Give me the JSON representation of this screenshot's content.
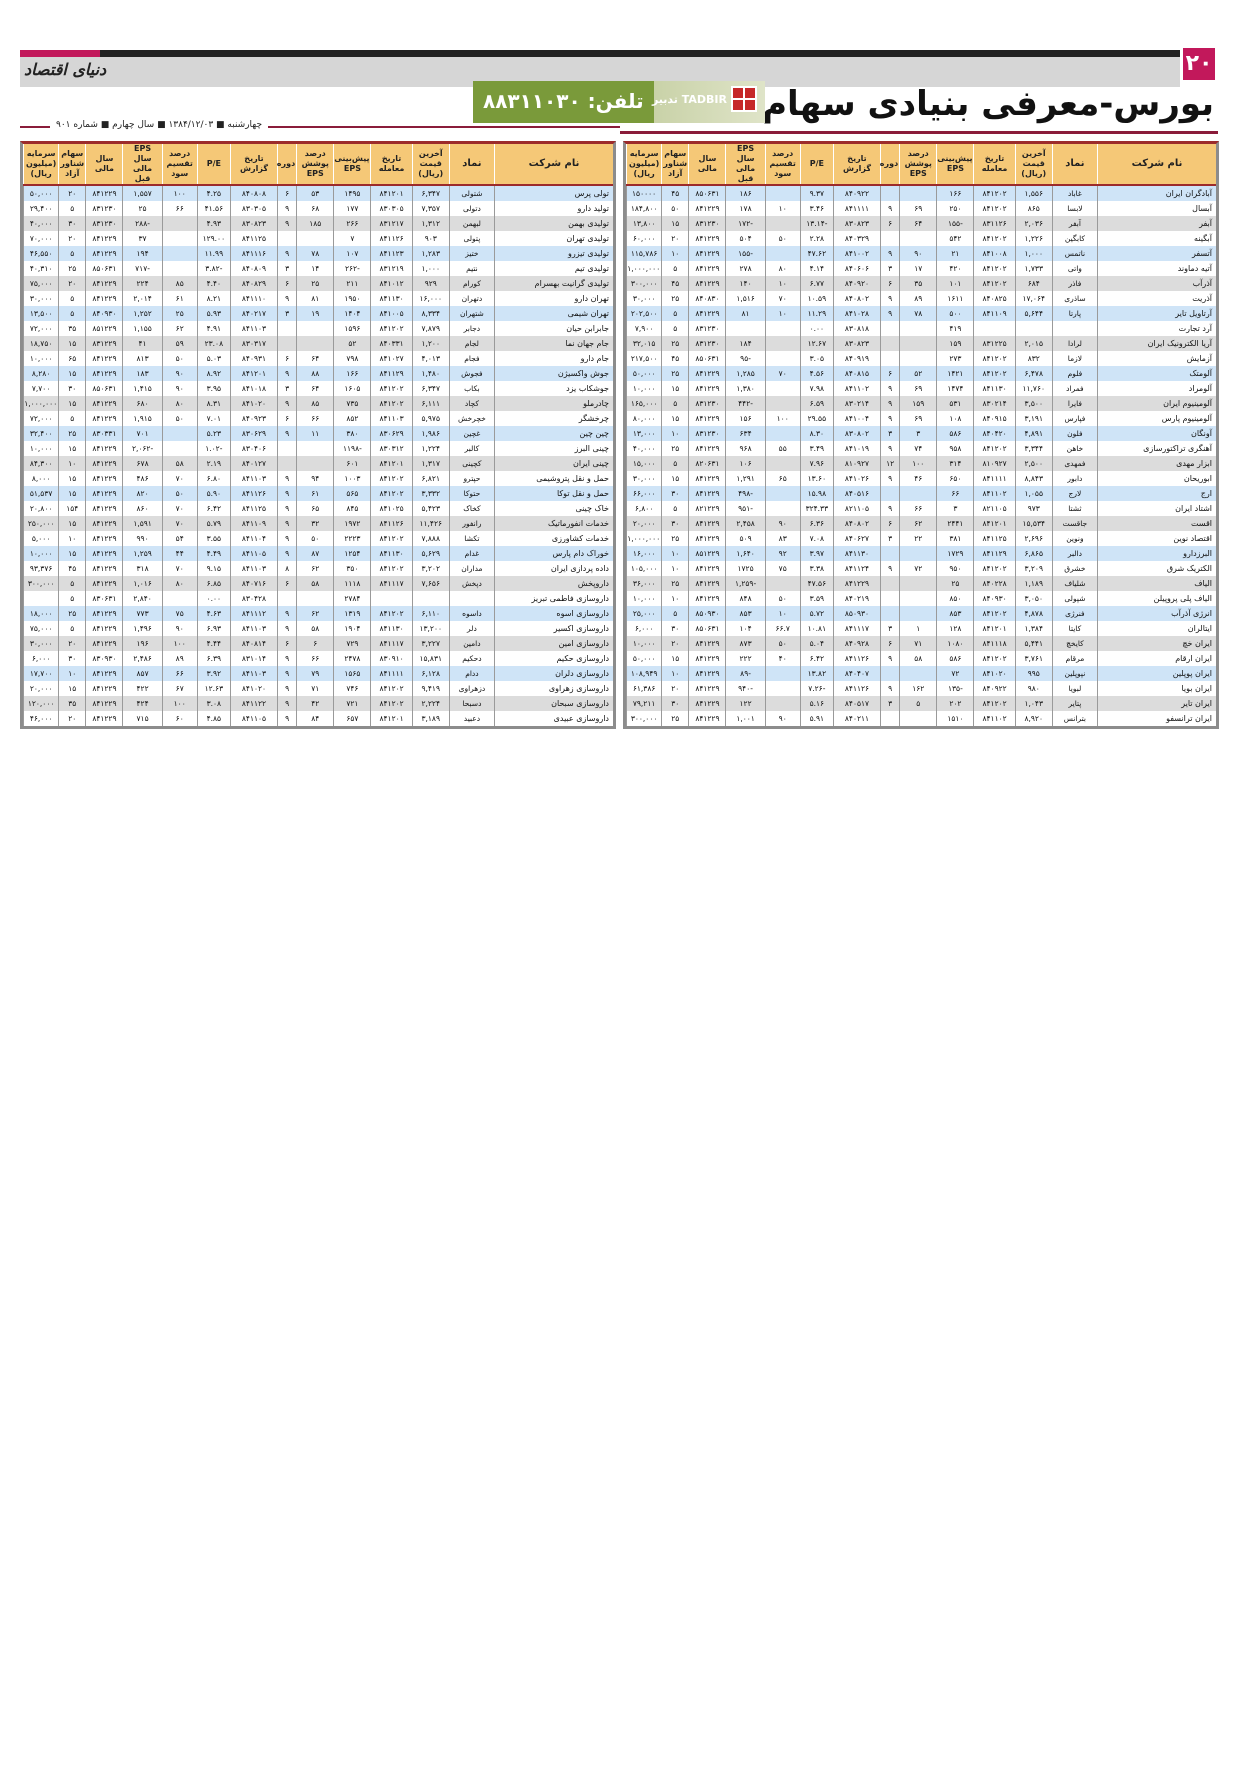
{
  "masthead": {
    "page_number": "۲۰",
    "paper_logo": "دنیای اقتصاد",
    "title": "بورس-معرفی بنیادی سهام",
    "phone": "تلفن: ۸۸۳۱۱۰۳۰",
    "sponsor": "تدبیر TADBIR",
    "dateline": "چهارشنبه ■ ۱۳۸۴/۱۲/۰۳ ■ سال چهارم ■ شماره ۹۰۱",
    "accent_color": "#c2185b",
    "banner_color": "#7a9a3a"
  },
  "columns": [
    "نام شرکت",
    "نماد",
    "آخرین قیمت (ریال)",
    "تاریخ معامله",
    "پیش‌بینی EPS",
    "درصد پوشش EPS",
    "دوره",
    "تاریخ گزارش",
    "P/E",
    "درصد تقسیم سود",
    "EPS سال مالی قبل",
    "سال مالی",
    "سهام شناور آزاد",
    "سرمایه (میلیون ریال)"
  ],
  "right_table": [
    [
      "آبادگران ایران",
      "غاباد",
      "۱,۵۵۶",
      "۸۴۱۲۰۲",
      "۱۶۶",
      "",
      "",
      "۸۴۰۹۲۲",
      "۹.۳۷",
      "",
      "۱۸۶",
      "۸۵۰۶۳۱",
      "۴۵",
      "۱۵۰۰۰۰"
    ],
    [
      "آبسال",
      "لابسا",
      "۸۶۵",
      "۸۴۱۲۰۲",
      "۲۵۰",
      "۶۹",
      "۹",
      "۸۴۱۱۱۱",
      "۳.۴۶",
      "۱۰",
      "۱۷۸",
      "۸۴۱۲۲۹",
      "۵۰",
      "۱۸۴,۸۰۰"
    ],
    [
      "آبفر",
      "آبفر",
      "۲,۰۳۶",
      "۸۳۱۱۲۶",
      "-۱۵۵",
      "۶۴",
      "۶",
      "۸۳۰۸۲۳",
      "-۱۳.۱۴",
      "",
      "-۱۷۲",
      "۸۳۱۲۳۰",
      "۱۵",
      "۱۳,۸۰۰"
    ],
    [
      "آبگینه",
      "کابگین",
      "۱,۲۲۶",
      "۸۴۱۲۰۲",
      "۵۴۲",
      "",
      "",
      "۸۴۰۳۲۹",
      "۲.۲۸",
      "۵۰",
      "۵۰۴",
      "۸۴۱۲۲۹",
      "۲۰",
      "۶۰,۰۰۰"
    ],
    [
      "آتسفر",
      "ناتمس",
      "۱,۰۰۰",
      "۸۴۱۰۰۸",
      "۲۱",
      "۹۰",
      "۹",
      "۸۴۱۰۰۲",
      "۴۷.۶۲",
      "",
      "-۱۵۵",
      "۸۴۱۲۲۹",
      "۱۰",
      "۱۱۵,۷۸۶"
    ],
    [
      "آتیه دماوند",
      "واتی",
      "۱,۷۳۳",
      "۸۴۱۲۰۲",
      "۴۲۰",
      "۱۷",
      "۳",
      "۸۴۰۶۰۶",
      "۴.۱۴",
      "۸۰",
      "۲۷۸",
      "۸۴۱۲۲۹",
      "۵",
      "۱,۰۰۰,۰۰۰"
    ],
    [
      "آذرآب",
      "فاذر",
      "۶۸۴",
      "۸۴۱۲۰۲",
      "۱۰۱",
      "۳۵",
      "۶",
      "۸۴۰۹۲۰",
      "۶.۷۷",
      "۱۰",
      "۱۴۰",
      "۸۴۱۲۲۹",
      "۴۵",
      "۳۰۰,۰۰۰"
    ],
    [
      "آذریت",
      "ساذری",
      "۱۷,۰۶۴",
      "۸۴۰۸۲۵",
      "۱۶۱۱",
      "۸۹",
      "۹",
      "۸۴۰۸۰۲",
      "۱۰.۵۹",
      "۷۰",
      "۱,۵۱۶",
      "۸۴۰۸۳۰",
      "۲۵",
      "۳۰,۰۰۰"
    ],
    [
      "آرتاویل تایر",
      "پارتا",
      "۵,۶۴۴",
      "۸۴۱۱۰۹",
      "۵۰۰",
      "۷۸",
      "۹",
      "۸۴۱۰۲۸",
      "۱۱.۲۹",
      "۱۰",
      "۸۱",
      "۸۴۱۲۲۹",
      "۵",
      "۲۰۲,۵۰۰"
    ],
    [
      "آرد تجارت",
      "",
      "",
      "",
      "۴۱۹",
      "",
      "",
      "۸۳۰۸۱۸",
      "۰.۰۰",
      "",
      "",
      "۸۳۱۲۳۰",
      "۵",
      "۷,۹۰۰"
    ],
    [
      "آریا الکترونیک ایران",
      "لرادا",
      "۲,۰۱۵",
      "۸۳۱۲۲۵",
      "۱۵۹",
      "",
      "",
      "۸۳۰۸۲۳",
      "۱۲.۶۷",
      "",
      "۱۸۴",
      "۸۳۱۲۳۰",
      "۲۵",
      "۳۲,۰۱۵"
    ],
    [
      "آزمایش",
      "لازما",
      "۸۳۲",
      "۸۴۱۲۰۲",
      "۲۷۳",
      "",
      "",
      "۸۴۰۹۱۹",
      "۳.۰۵",
      "",
      "-۹۵",
      "۸۵۰۶۳۱",
      "۴۵",
      "۲۱۷,۵۰۰"
    ],
    [
      "آلومتک",
      "فلوم",
      "۶,۴۷۸",
      "۸۴۱۲۰۲",
      "۱۴۲۱",
      "۵۲",
      "۶",
      "۸۴۰۸۱۵",
      "۴.۵۶",
      "۷۰",
      "۱,۲۸۵",
      "۸۴۱۲۲۹",
      "۲۵",
      "۵۰,۰۰۰"
    ],
    [
      "آلومراد",
      "فمراد",
      "۱۱,۷۶۰",
      "۸۴۱۱۳۰",
      "۱۴۷۴",
      "۶۹",
      "۹",
      "۸۴۱۱۰۲",
      "۷.۹۸",
      "",
      "۱,۳۸۰",
      "۸۴۱۲۲۹",
      "۱۵",
      "۱۰,۰۰۰"
    ],
    [
      "آلومینیوم ایران",
      "فایرا",
      "۳,۵۰۰",
      "۸۳۰۲۱۴",
      "۵۳۱",
      "۱۵۹",
      "۹",
      "۸۳۰۲۱۴",
      "۶.۵۹",
      "",
      "-۴۴۲",
      "۸۳۱۲۳۰",
      "۵",
      "۱۶۵,۰۰۰"
    ],
    [
      "آلومینیوم پارس",
      "فپارس",
      "۳,۱۹۱",
      "۸۴۰۹۱۵",
      "۱۰۸",
      "۶۹",
      "۹",
      "۸۴۱۰۰۴",
      "۲۹.۵۵",
      "۱۰۰",
      "۱۵۶",
      "۸۴۱۲۲۹",
      "۱۵",
      "۸۰,۰۰۰"
    ],
    [
      "آونگان",
      "فلون",
      "۴,۸۹۱",
      "۸۴۰۴۲۰",
      "۵۸۶",
      "۳",
      "۳",
      "۸۳۰۸۰۲",
      "۸.۳۰",
      "",
      "۶۳۴",
      "۸۳۱۲۳۰",
      "۱۰",
      "۱۳,۰۰۰"
    ],
    [
      "آهنگری تراکتورسازی",
      "خاهن",
      "۳,۳۴۴",
      "۸۴۱۲۰۲",
      "۹۵۸",
      "۷۴",
      "۹",
      "۸۴۱۰۱۹",
      "۳.۴۹",
      "۵۵",
      "۹۶۸",
      "۸۴۱۲۲۹",
      "۲۵",
      "۴۰,۰۰۰"
    ],
    [
      "ابزار مهدی",
      "فمهدی",
      "۲,۵۰۰",
      "۸۱۰۹۲۷",
      "۳۱۴",
      "۱۰۰",
      "۱۲",
      "۸۱۰۹۲۷",
      "۷.۹۶",
      "",
      "۱۰۶",
      "۸۲۰۶۳۱",
      "۵",
      "۱۵,۰۰۰"
    ],
    [
      "ابوریحان",
      "دابور",
      "۸,۸۴۳",
      "۸۴۱۱۱۱",
      "۶۵۰",
      "۴۶",
      "۹",
      "۸۴۱۰۲۶",
      "۱۳.۶۰",
      "۶۵",
      "۱,۲۹۱",
      "۸۴۱۲۲۹",
      "۱۵",
      "۳۰,۰۰۰"
    ],
    [
      "ارج",
      "لارج",
      "۱,۰۵۵",
      "۸۴۱۱۰۲",
      "۶۶",
      "",
      "",
      "۸۴۰۵۱۶",
      "۱۵.۹۸",
      "",
      "-۴۹۸",
      "۸۴۱۲۲۹",
      "۳۰",
      "۶۶,۰۰۰"
    ],
    [
      "اشتاد ایران",
      "ثشتا",
      "۹۷۳",
      "۸۲۱۱۰۵",
      "۳",
      "۶۶",
      "۹",
      "۸۲۱۱۰۵",
      "۳۲۴.۳۳",
      "",
      "-۹۵۱",
      "۸۲۱۲۲۹",
      "۵",
      "۶,۸۰۰"
    ],
    [
      "اقست",
      "جاقست",
      "۱۵,۵۳۴",
      "۸۴۱۲۰۱",
      "۲۴۴۱",
      "۶۲",
      "۶",
      "۸۴۰۸۰۲",
      "۶.۳۶",
      "۹۰",
      "۲,۴۵۸",
      "۸۴۱۲۲۹",
      "۳۰",
      "۲۰,۰۰۰"
    ],
    [
      "اقتصاد نوین",
      "ونوین",
      "۲,۶۹۶",
      "۸۴۱۱۲۵",
      "۳۸۱",
      "۲۲",
      "۳",
      "۸۴۰۶۲۷",
      "۷.۰۸",
      "۸۳",
      "۵۰۹",
      "۸۴۱۲۲۹",
      "۲۵",
      "۱,۰۰۰,۰۰۰"
    ],
    [
      "البرزدارو",
      "دالبر",
      "۶,۸۶۵",
      "۸۴۱۱۲۹",
      "۱۷۲۹",
      "",
      "",
      "۸۴۱۱۳۰",
      "۳.۹۷",
      "۹۲",
      "۱,۶۴۰",
      "۸۵۱۲۲۹",
      "۱۰",
      "۱۶,۰۰۰"
    ],
    [
      "الکتریک شرق",
      "خشرق",
      "۳,۲۰۹",
      "۸۴۱۲۰۲",
      "۹۵۰",
      "۷۲",
      "۹",
      "۸۴۱۱۲۴",
      "۳.۳۸",
      "۷۵",
      "۱۷۲۵",
      "۸۴۱۲۲۹",
      "۱۰",
      "۱۰۵,۰۰۰"
    ],
    [
      "الیاف",
      "شلیاف",
      "۱,۱۸۹",
      "۸۴۰۲۲۸",
      "۲۵",
      "",
      "",
      "۸۴۱۲۲۹",
      "۴۷.۵۶",
      "",
      "-۱,۲۵۹",
      "۸۴۱۲۲۹",
      "۲۵",
      "۳۶,۰۰۰"
    ],
    [
      "الیاف پلی پروپیلن",
      "شپولی",
      "۳,۰۵۰",
      "۸۴۰۹۳۰",
      "۸۵۰",
      "",
      "",
      "۸۴۰۲۱۹",
      "۳.۵۹",
      "۵۰",
      "۸۴۸",
      "۸۴۱۲۲۹",
      "۱۰",
      "۱۰,۰۰۰"
    ],
    [
      "انرژی آذرآب",
      "فنرژی",
      "۴,۸۷۸",
      "۸۴۱۲۰۲",
      "۸۵۳",
      "",
      "",
      "۸۵۰۹۳۰",
      "۵.۷۲",
      "۱۰",
      "۸۵۳",
      "۸۵۰۹۳۰",
      "۵",
      "۲۵,۰۰۰"
    ],
    [
      "ایتالران",
      "کایتا",
      "۱,۳۸۴",
      "۸۴۱۲۰۱",
      "۱۲۸",
      "۱",
      "۳",
      "۸۴۱۱۱۷",
      "۱۰.۸۱",
      "۶۶.۷",
      "۱۰۴",
      "۸۵۰۶۳۱",
      "۳۰",
      "۶,۰۰۰"
    ],
    [
      "ایران خچ",
      "کایخچ",
      "۵,۴۴۱",
      "۸۴۱۱۱۸",
      "۱۰۸۰",
      "۷۱",
      "۶",
      "۸۴۰۹۲۸",
      "۵.۰۴",
      "۵۰",
      "۸۷۳",
      "۸۴۱۲۲۹",
      "۲۰",
      "۱۰,۰۰۰"
    ],
    [
      "ایران ارقام",
      "مرقام",
      "۳,۷۶۱",
      "۸۴۱۲۰۲",
      "۵۸۶",
      "۵۸",
      "۹",
      "۸۴۱۱۲۶",
      "۶.۴۲",
      "۴۰",
      "۲۲۲",
      "۸۴۱۲۲۹",
      "۱۵",
      "۵۰,۰۰۰"
    ],
    [
      "ایران پوپلین",
      "نپوپلین",
      "۹۹۵",
      "۸۴۱۰۲۰",
      "۷۲",
      "",
      "",
      "۸۴۰۴۰۷",
      "۱۳.۸۲",
      "",
      "-۸۹",
      "۸۴۱۲۲۹",
      "۱۰",
      "۱۰۸,۹۴۹"
    ],
    [
      "ایران بویا",
      "لبویا",
      "۹۸۰",
      "۸۴۰۹۲۲",
      "-۱۳۵",
      "۱۶۲",
      "۹",
      "۸۴۱۱۲۶",
      "-۷.۲۶",
      "",
      "-۹۴۰",
      "۸۴۱۲۲۹",
      "۲۰",
      "۶۱,۳۸۶"
    ],
    [
      "ایران تایر",
      "پتایر",
      "۱,۰۴۳",
      "۸۴۱۲۰۲",
      "۲۰۲",
      "۵",
      "۳",
      "۸۴۰۵۱۷",
      "۵.۱۶",
      "",
      "۱۲۲",
      "۸۴۱۲۲۹",
      "۳۰",
      "۷۹,۲۱۱"
    ],
    [
      "ایران ترانسفو",
      "بترانس",
      "۸,۹۲۰",
      "۸۴۱۱۰۲",
      "۱۵۱۰",
      "",
      "",
      "۸۴۰۲۱۱",
      "۵.۹۱",
      "۹۰",
      "۱,۰۰۱",
      "۸۴۱۲۲۹",
      "۲۵",
      "۳۰۰,۰۰۰"
    ]
  ],
  "left_table": [
    [
      "تولی پرس",
      "شتولی",
      "۶,۳۴۷",
      "۸۴۱۲۰۱",
      "۱۴۹۵",
      "۵۳",
      "۶",
      "۸۴۰۸۰۸",
      "۴.۲۵",
      "۱۰۰",
      "۱,۵۵۷",
      "۸۴۱۲۲۹",
      "۲۰",
      "۵۰,۰۰۰"
    ],
    [
      "تولید دارو",
      "دتولی",
      "۷,۳۵۷",
      "۸۳۰۳۰۵",
      "۱۷۷",
      "۶۸",
      "۹",
      "۸۳۰۳۰۵",
      "۴۱.۵۶",
      "۶۶",
      "۲۵",
      "۸۳۱۲۳۰",
      "۵",
      "۲۹,۴۰۰"
    ],
    [
      "تولیدی بهمن",
      "لبهمن",
      "۱,۳۱۲",
      "۸۳۱۲۱۷",
      "۲۶۶",
      "۱۸۵",
      "۹",
      "۸۳۰۸۲۳",
      "۴.۹۳",
      "",
      "-۲۸۸",
      "۸۳۱۲۳۰",
      "۳۰",
      "۴۰,۰۰۰"
    ],
    [
      "تولیدی تهران",
      "پتولی",
      "۹۰۳",
      "۸۴۱۱۲۶",
      "۷",
      "",
      "",
      "۸۴۱۱۲۵",
      "۱۲۹.۰۰",
      "",
      "۳۷",
      "۸۴۱۲۲۹",
      "۲۰",
      "۷۰,۰۰۰"
    ],
    [
      "تولیدی تیزرو",
      "ختیز",
      "۱,۲۸۳",
      "۸۴۱۱۲۳",
      "۱۰۷",
      "۷۸",
      "۹",
      "۸۴۱۱۱۶",
      "۱۱.۹۹",
      "",
      "۱۹۴",
      "۸۴۱۲۲۹",
      "۵",
      "۴۶,۵۵۰"
    ],
    [
      "تولیدی تیم",
      "نتیم",
      "۱,۰۰۰",
      "۸۳۱۲۱۹",
      "-۲۶۲",
      "۱۴",
      "۳",
      "۸۴۰۸۰۹",
      "-۳.۸۲",
      "",
      "-۷۱۷",
      "۸۵۰۶۳۱",
      "۲۵",
      "۴۰,۳۱۰"
    ],
    [
      "تولیدی گرانیت بهسرام",
      "کورام",
      "۹۲۹",
      "۸۴۱۰۱۲",
      "۲۱۱",
      "۲۵",
      "۶",
      "۸۴۰۸۲۹",
      "۴.۴۰",
      "۸۵",
      "۲۲۴",
      "۸۴۱۲۲۹",
      "۲۰",
      "۷۵,۰۰۰"
    ],
    [
      "تهران دارو",
      "دتهران",
      "۱۶,۰۰۰",
      "۸۴۱۱۳۰",
      "۱۹۵۰",
      "۸۱",
      "۹",
      "۸۴۱۱۱۰",
      "۸.۲۱",
      "۶۱",
      "۲,۰۱۴",
      "۸۴۱۲۲۹",
      "۵",
      "۳۰,۰۰۰"
    ],
    [
      "تهران شیمی",
      "شتهران",
      "۸,۳۳۴",
      "۸۴۱۰۰۵",
      "۱۴۰۴",
      "۱۹",
      "۳",
      "۸۴۰۲۱۷",
      "۵.۹۳",
      "۲۵",
      "۱,۲۵۲",
      "۸۴۰۹۳۰",
      "۵",
      "۱۳,۵۰۰"
    ],
    [
      "جابرابن حیان",
      "دجابر",
      "۷,۸۷۹",
      "۸۴۱۲۰۲",
      "۱۵۹۶",
      "",
      "",
      "۸۴۱۱۰۳",
      "۴.۹۱",
      "۶۲",
      "۱,۱۵۵",
      "۸۵۱۲۲۹",
      "۳۵",
      "۷۲,۰۰۰"
    ],
    [
      "جام جهان نما",
      "لجام",
      "۱,۲۰۰",
      "۸۴۰۳۳۱",
      "۵۲",
      "",
      "",
      "۸۳۰۳۱۷",
      "۲۳.۰۸",
      "۵۹",
      "۴۱",
      "۸۳۱۲۲۹",
      "۱۵",
      "۱۸,۷۵۰"
    ],
    [
      "جام دارو",
      "فجام",
      "۴,۰۱۳",
      "۸۴۱۰۲۷",
      "۷۹۸",
      "۶۴",
      "۶",
      "۸۴۰۹۳۱",
      "۵.۰۳",
      "۵۰",
      "۸۱۳",
      "۸۴۱۲۲۹",
      "۶۵",
      "۱۰,۰۰۰"
    ],
    [
      "جوش واکسیژن",
      "فجوش",
      "۱,۴۸۰",
      "۸۴۱۱۲۹",
      "۱۶۶",
      "۸۸",
      "۹",
      "۸۴۱۲۰۱",
      "۸.۹۲",
      "۹۰",
      "۱۸۳",
      "۸۴۱۲۲۹",
      "۱۵",
      "۸,۲۸۰"
    ],
    [
      "جوشکاب یزد",
      "بکاب",
      "۶,۳۴۷",
      "۸۴۱۲۰۲",
      "۱۶۰۵",
      "۶۴",
      "۳",
      "۸۴۱۰۱۸",
      "۳.۹۵",
      "۹۰",
      "۱,۴۱۵",
      "۸۵۰۶۳۱",
      "۳۰",
      "۷,۷۰۰"
    ],
    [
      "چادرملو",
      "کچاد",
      "۶,۱۱۱",
      "۸۴۱۲۰۲",
      "۷۳۵",
      "۸۵",
      "۹",
      "۸۴۱۰۲۰",
      "۸.۳۱",
      "۸۰",
      "۶۸۰",
      "۸۴۱۲۲۹",
      "۱۵",
      "۱,۰۰۰,۰۰۰"
    ],
    [
      "چرخشگر",
      "خچرخش",
      "۵,۹۷۵",
      "۸۴۱۱۰۳",
      "۸۵۲",
      "۶۶",
      "۶",
      "۸۴۰۹۲۳",
      "۷.۰۱",
      "۵۰",
      "۱,۹۱۵",
      "۸۴۱۲۲۹",
      "۵",
      "۷۲,۰۰۰"
    ],
    [
      "چین چین",
      "غچین",
      "۱,۹۸۶",
      "۸۳۰۶۲۹",
      "۳۸۰",
      "۱۱",
      "۹",
      "۸۳۰۶۲۹",
      "۵.۲۳",
      "",
      "۷۰۱",
      "۸۳۰۳۳۱",
      "۲۵",
      "۳۲,۴۰۰"
    ],
    [
      "چینی البرز",
      "کالبر",
      "۱,۲۲۴",
      "۸۳۰۳۱۲",
      "-۱۱۹۸",
      "",
      "",
      "۸۳۰۴۰۶",
      "-۱.۰۲",
      "",
      "-۲,۰۶۲",
      "۸۴۱۲۲۹",
      "۱۵",
      "۱۰,۰۰۰"
    ],
    [
      "چینی ایران",
      "کچینی",
      "۱,۳۱۷",
      "۸۴۱۲۰۱",
      "۶۰۱",
      "",
      "",
      "۸۴۰۱۲۷",
      "۲.۱۹",
      "۵۸",
      "۶۷۸",
      "۸۴۱۲۲۹",
      "۱۰",
      "۸۴,۳۰۰"
    ],
    [
      "حمل و نقل پتروشیمی",
      "حپترو",
      "۶,۸۲۱",
      "۸۴۱۲۰۲",
      "۱۰۰۳",
      "۹۴",
      "۹",
      "۸۴۱۱۰۳",
      "۶.۸۰",
      "۷۰",
      "۴۸۶",
      "۸۴۱۲۲۹",
      "۱۵",
      "۸,۰۰۰"
    ],
    [
      "حمل و نقل توکا",
      "حتوکا",
      "۳,۳۳۲",
      "۸۴۱۲۰۲",
      "۵۶۵",
      "۶۱",
      "۹",
      "۸۴۱۱۲۶",
      "۵.۹۰",
      "۵۰",
      "۸۲۰",
      "۸۴۱۲۲۹",
      "۱۵",
      "۵۱,۵۳۷"
    ],
    [
      "خاک چینی",
      "کخاک",
      "۵,۴۲۳",
      "۸۴۱۰۲۵",
      "۸۴۵",
      "۶۵",
      "۹",
      "۸۴۱۱۲۵",
      "۶.۴۲",
      "۷۰",
      "۸۶۰",
      "۸۴۱۲۲۹",
      "۱۵۴",
      "۲۰,۸۰۰"
    ],
    [
      "خدمات انفورماتیک",
      "رانفور",
      "۱۱,۴۲۶",
      "۸۴۱۱۲۶",
      "۱۹۷۲",
      "۳۲",
      "۹",
      "۸۴۱۱۰۹",
      "۵.۷۹",
      "۷۰",
      "۱,۵۹۱",
      "۸۴۱۲۲۹",
      "۱۵",
      "۲۵۰,۰۰۰"
    ],
    [
      "خدمات کشاورزی",
      "تکشا",
      "۷,۸۸۸",
      "۸۴۱۲۰۲",
      "۲۲۲۳",
      "۵۰",
      "۹",
      "۸۴۱۱۰۴",
      "۳.۵۵",
      "۵۴",
      "۹۹۰",
      "۸۴۱۲۲۹",
      "۱۰",
      "۵,۰۰۰"
    ],
    [
      "خوراک دام پارس",
      "غدام",
      "۵,۶۲۹",
      "۸۴۱۱۳۰",
      "۱۲۵۴",
      "۸۷",
      "۹",
      "۸۴۱۱۰۵",
      "۴.۴۹",
      "۴۴",
      "۱,۲۵۹",
      "۸۴۱۲۲۹",
      "۱۵",
      "۱۰,۰۰۰"
    ],
    [
      "داده پردازی ایران",
      "مداران",
      "۳,۲۰۲",
      "۸۴۱۲۰۲",
      "۳۵۰",
      "۶۲",
      "۸",
      "۸۴۱۱۰۳",
      "۹.۱۵",
      "۷۰",
      "۳۱۸",
      "۸۴۱۲۲۹",
      "۴۵",
      "۹۳,۳۷۶"
    ],
    [
      "داروپخش",
      "دپخش",
      "۷,۶۵۶",
      "۸۴۱۱۱۷",
      "۱۱۱۸",
      "۵۸",
      "۶",
      "۸۴۰۷۱۶",
      "۶.۸۵",
      "۸۰",
      "۱,۰۱۶",
      "۸۴۱۲۲۹",
      "۵",
      "۳۰۰,۰۰۰"
    ],
    [
      "داروسازی فاطمی تبریز",
      "",
      "",
      "",
      "۲۷۸۴",
      "",
      "",
      "۸۳۰۴۲۸",
      "۰.۰۰",
      "",
      "۲,۸۴۰",
      "۸۳۰۶۳۱",
      "۵",
      ""
    ],
    [
      "داروسازی اسوه",
      "داسوه",
      "۶,۱۱۰",
      "۸۴۱۲۰۲",
      "۱۳۱۹",
      "۶۲",
      "۹",
      "۸۴۱۱۱۲",
      "۴.۶۳",
      "۷۵",
      "۷۷۳",
      "۸۴۱۲۲۹",
      "۲۵",
      "۱۸,۰۰۰"
    ],
    [
      "داروسازی اکسیر",
      "دلر",
      "۱۳,۲۰۰",
      "۸۴۱۱۳۰",
      "۱۹۰۴",
      "۵۸",
      "۹",
      "۸۴۱۱۰۳",
      "۶.۹۳",
      "۹۰",
      "۱,۴۹۶",
      "۸۴۱۲۲۹",
      "۵",
      "۷۵,۰۰۰"
    ],
    [
      "داروسازی امین",
      "دامین",
      "۳,۲۲۷",
      "۸۴۱۱۱۷",
      "۷۲۹",
      "۶",
      "۶",
      "۸۴۰۸۱۴",
      "۴.۴۴",
      "۱۰۰",
      "۱۹۶",
      "۸۴۱۲۲۹",
      "۲۰",
      "۳۰,۰۰۰"
    ],
    [
      "داروسازی حکیم",
      "دحکیم",
      "۱۵,۸۳۱",
      "۸۳۰۹۱۰",
      "۲۴۷۸",
      "۶۶",
      "۹",
      "۸۳۱۰۱۴",
      "۶.۳۹",
      "۸۹",
      "۲,۴۸۶",
      "۸۳۰۹۳۰",
      "۳۰",
      "۶,۰۰۰"
    ],
    [
      "داروسازی دلران",
      "ددام",
      "۶,۱۲۸",
      "۸۴۱۱۱۱",
      "۱۵۶۵",
      "۷۹",
      "۹",
      "۸۴۱۱۰۳",
      "۳.۹۲",
      "۶۶",
      "۸۵۷",
      "۸۴۱۲۲۹",
      "۱۰",
      "۱۷,۷۰۰"
    ],
    [
      "داروسازی زهراوی",
      "دزهراوی",
      "۹,۴۱۹",
      "۸۴۱۲۰۲",
      "۷۴۶",
      "۷۱",
      "۹",
      "۸۴۱۰۲۰",
      "۱۲.۶۳",
      "۶۷",
      "۴۲۲",
      "۸۴۱۲۲۹",
      "۱۵",
      "۲۰,۰۰۰"
    ],
    [
      "داروسازی سبحان",
      "دسبحا",
      "۲,۲۲۴",
      "۸۴۱۲۰۲",
      "۷۲۱",
      "۴۲",
      "۹",
      "۸۴۱۱۲۲",
      "۳.۰۸",
      "۱۰۰",
      "۴۲۴",
      "۸۴۱۲۲۹",
      "۳۵",
      "۱۲۰,۰۰۰"
    ],
    [
      "داروسازی عبیدی",
      "دعبید",
      "۳,۱۸۹",
      "۸۴۱۲۰۱",
      "۶۵۷",
      "۸۴",
      "۹",
      "۸۴۱۱۰۵",
      "۴.۸۵",
      "۶۰",
      "۷۱۵",
      "۸۴۱۲۲۹",
      "۲۰",
      "۴۶,۰۰۰"
    ]
  ]
}
